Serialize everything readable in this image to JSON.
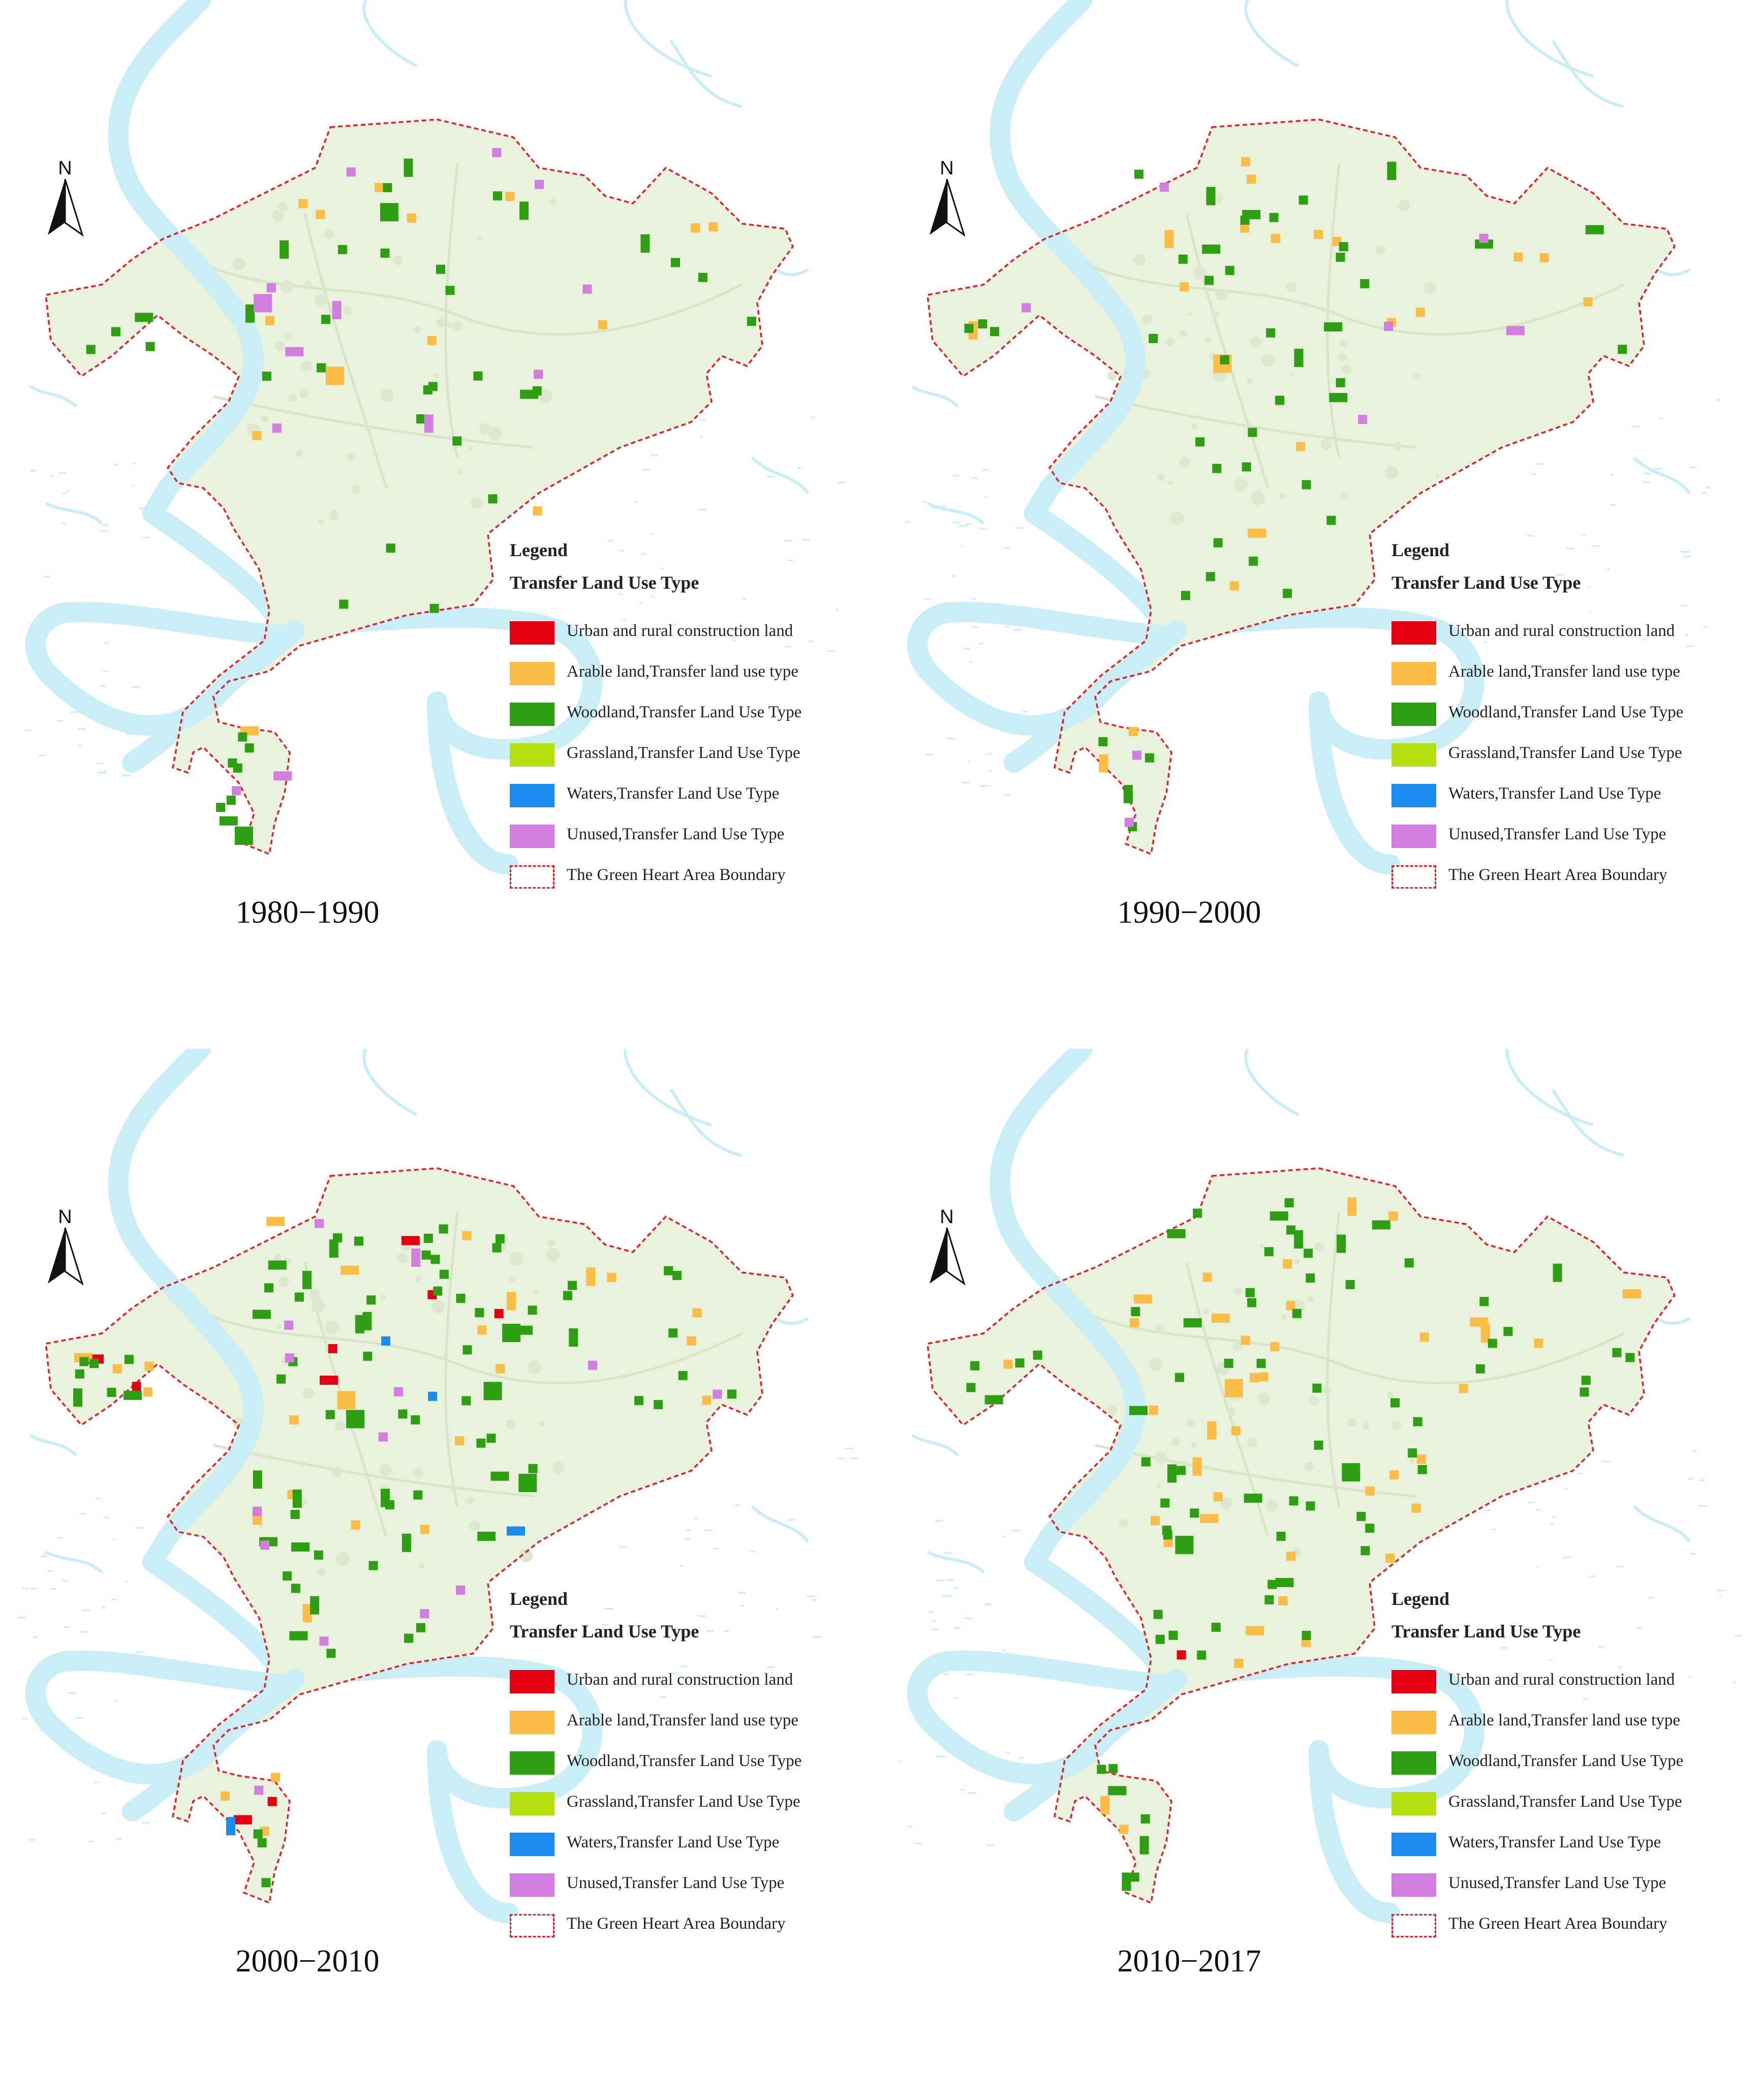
{
  "legend": {
    "title": "Legend",
    "subtitle": "Transfer Land Use Type",
    "items": [
      {
        "key": "urban",
        "label": "Urban and rural construction land",
        "color": "#e60012"
      },
      {
        "key": "arable",
        "label": "Arable land,Transfer land use type",
        "color": "#fbbd46"
      },
      {
        "key": "woodland",
        "label": "Woodland,Transfer Land Use Type",
        "color": "#2e9e12"
      },
      {
        "key": "grassland",
        "label": "Grassland,Transfer Land Use Type",
        "color": "#b5e010"
      },
      {
        "key": "waters",
        "label": "Waters,Transfer Land Use Type",
        "color": "#1a8cf0"
      },
      {
        "key": "unused",
        "label": "Unused,Transfer Land Use Type",
        "color": "#d27ee0"
      },
      {
        "key": "boundary",
        "label": "The Green Heart Area Boundary",
        "color": "#e4202a"
      }
    ]
  },
  "north_label": "N",
  "colors": {
    "river": "#c9eef6",
    "region_fill": "#e9f2dc",
    "boundary": "#e4202a"
  },
  "panels": [
    {
      "id": "1980-1990",
      "caption": "1980−1990",
      "changes": {
        "urban": 0,
        "arable": 14,
        "woodland": 42,
        "grassland": 0,
        "waters": 0,
        "unused": 13
      }
    },
    {
      "id": "1990-2000",
      "caption": "1990−2000",
      "changes": {
        "urban": 0,
        "arable": 20,
        "woodland": 44,
        "grassland": 0,
        "waters": 0,
        "unused": 8
      }
    },
    {
      "id": "2000-2010",
      "caption": "2000−2010",
      "changes": {
        "urban": 9,
        "arable": 26,
        "woodland": 78,
        "grassland": 0,
        "waters": 4,
        "unused": 14
      }
    },
    {
      "id": "2010-2017",
      "caption": "2010−2017",
      "changes": {
        "urban": 1,
        "arable": 40,
        "woodland": 74,
        "grassland": 0,
        "waters": 0,
        "unused": 0
      }
    }
  ]
}
